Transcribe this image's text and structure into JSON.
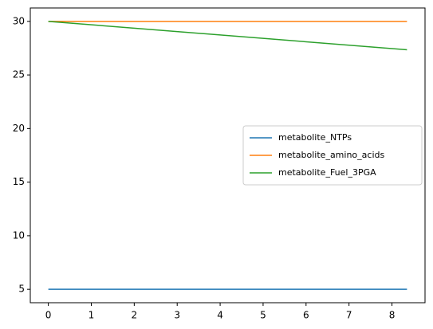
{
  "chart_data": {
    "type": "line",
    "x": [
      0,
      8.35
    ],
    "series": [
      {
        "name": "metabolite_NTPs",
        "color": "#1f77b4",
        "values": [
          5,
          5
        ]
      },
      {
        "name": "metabolite_amino_acids",
        "color": "#ff7f0e",
        "values": [
          30,
          30
        ]
      },
      {
        "name": "metabolite_Fuel_3PGA",
        "color": "#2ca02c",
        "values": [
          30,
          27.35
        ]
      }
    ],
    "xlim": [
      -0.42,
      8.77
    ],
    "xticks": [
      0,
      1,
      2,
      3,
      4,
      5,
      6,
      7,
      8
    ],
    "ylim": [
      3.75,
      31.25
    ],
    "yticks": [
      5,
      10,
      15,
      20,
      25,
      30
    ],
    "legend": "center right"
  }
}
